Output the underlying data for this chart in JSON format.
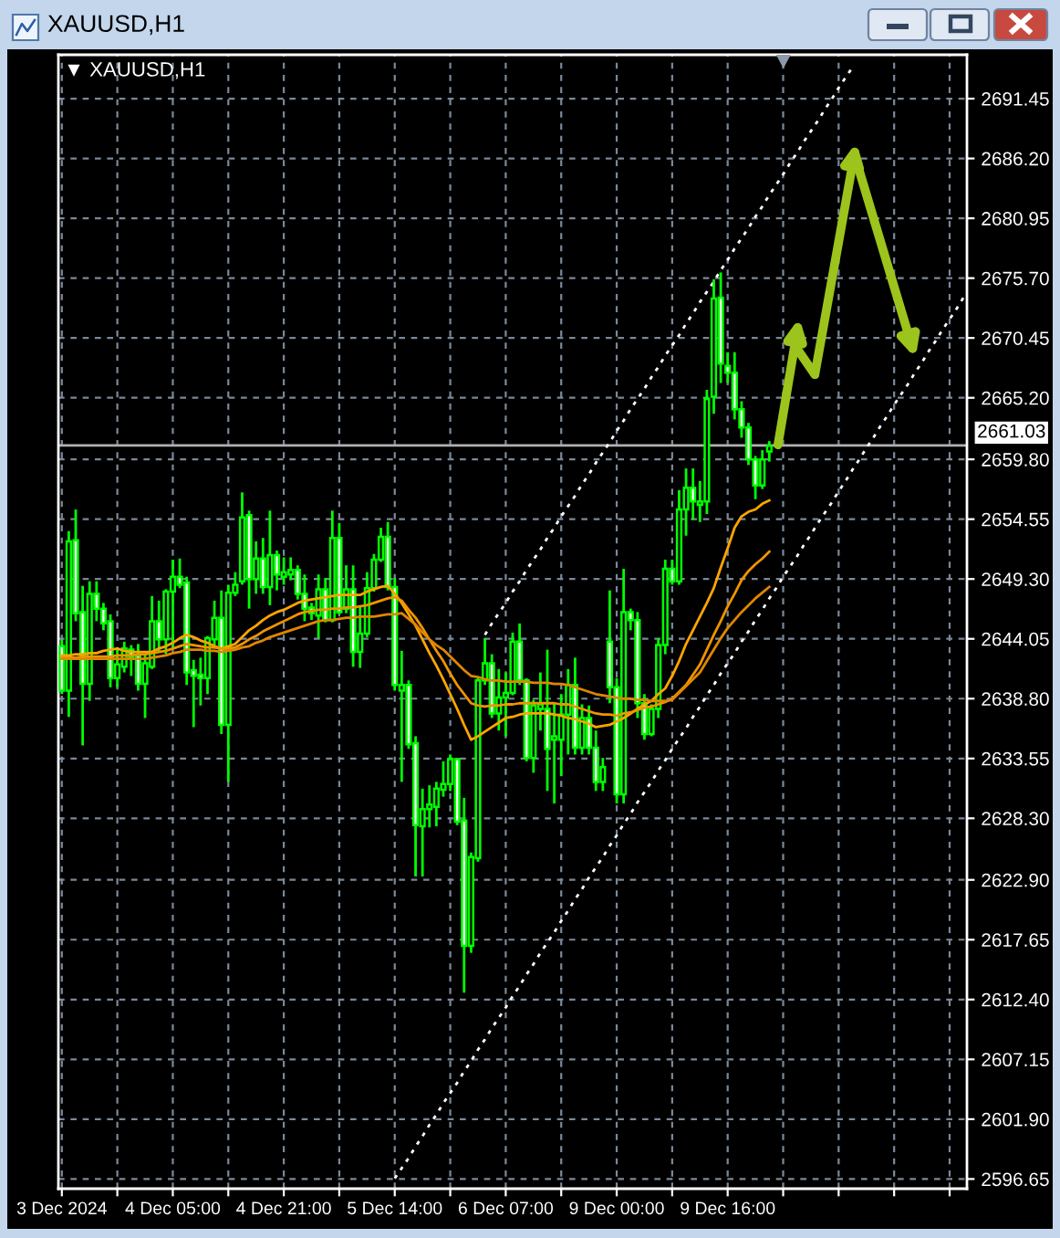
{
  "chart_data": {
    "type": "candlestick",
    "title": "XAUUSD,H1",
    "subtitle": "▼ XAUUSD,H1",
    "categories": [
      "3 Dec 2024",
      null,
      null,
      null,
      null,
      null,
      null,
      null,
      null,
      null,
      null,
      null,
      null,
      null,
      null,
      null,
      "4 Dec 05:00",
      null,
      null,
      null,
      null,
      null,
      null,
      null,
      null,
      null,
      null,
      null,
      null,
      null,
      null,
      null,
      "4 Dec 21:00",
      null,
      null,
      null,
      null,
      null,
      null,
      null,
      null,
      null,
      null,
      null,
      null,
      null,
      null,
      null,
      "5 Dec 14:00",
      null,
      null,
      null,
      null,
      null,
      null,
      null,
      null,
      null,
      null,
      null,
      null,
      null,
      null,
      null,
      "6 Dec 07:00",
      null,
      null,
      null,
      null,
      null,
      null,
      null,
      null,
      null,
      null,
      null,
      null,
      null,
      null,
      null,
      "9 Dec 00:00",
      null,
      null,
      null,
      null,
      null,
      null,
      null,
      null,
      null,
      null,
      null,
      null,
      null,
      null,
      null,
      "9 Dec 16:00",
      null,
      null,
      null,
      null,
      null,
      null,
      null,
      null,
      null,
      null,
      null,
      null,
      null,
      null,
      null,
      null,
      null,
      null,
      null,
      null,
      null,
      null,
      null,
      null,
      null,
      null,
      null,
      null,
      null,
      null,
      null,
      null,
      null,
      null
    ],
    "color": "#00ff00",
    "ohlc": [
      [
        2643.4,
        2644.0,
        2639.2,
        2639.5
      ],
      [
        2639.5,
        2653.5,
        2637.2,
        2652.6
      ],
      [
        2652.7,
        2655.4,
        2645.6,
        2646.3
      ],
      [
        2646.4,
        2648.7,
        2634.7,
        2640.1
      ],
      [
        2640.1,
        2649.1,
        2638.6,
        2648.0
      ],
      [
        2648.0,
        2649.1,
        2645.6,
        2646.7
      ],
      [
        2646.7,
        2647.2,
        2644.8,
        2645.4
      ],
      [
        2645.6,
        2646.2,
        2639.8,
        2640.6
      ],
      [
        2640.6,
        2643.2,
        2639.8,
        2641.8
      ],
      [
        2641.6,
        2643.8,
        2641.1,
        2643.2
      ],
      [
        2643.1,
        2643.5,
        2640.8,
        2642.4
      ],
      [
        2642.6,
        2643.6,
        2639.5,
        2640.1
      ],
      [
        2640.1,
        2642.7,
        2637.1,
        2641.9
      ],
      [
        2641.6,
        2647.8,
        2641.4,
        2645.6
      ],
      [
        2645.6,
        2647.4,
        2642.9,
        2644.0
      ],
      [
        2644.0,
        2648.4,
        2642.7,
        2648.2
      ],
      [
        2648.2,
        2651.0,
        2643.2,
        2649.5
      ],
      [
        2649.5,
        2651.1,
        2648.5,
        2648.8
      ],
      [
        2649.0,
        2649.5,
        2640.0,
        2641.1
      ],
      [
        2641.3,
        2642.2,
        2636.3,
        2640.8
      ],
      [
        2640.9,
        2642.4,
        2638.2,
        2640.6
      ],
      [
        2640.6,
        2644.3,
        2639.2,
        2644.1
      ],
      [
        2644.0,
        2647.4,
        2643.2,
        2645.9
      ],
      [
        2645.9,
        2648.3,
        2635.7,
        2636.5
      ],
      [
        2636.5,
        2648.8,
        2631.5,
        2648.1
      ],
      [
        2648.1,
        2649.9,
        2647.8,
        2648.8
      ],
      [
        2649.1,
        2656.9,
        2648.8,
        2654.7
      ],
      [
        2654.9,
        2655.3,
        2646.7,
        2649.3
      ],
      [
        2649.3,
        2652.6,
        2648.0,
        2651.1
      ],
      [
        2651.1,
        2652.9,
        2648.0,
        2648.6
      ],
      [
        2648.6,
        2655.3,
        2647.0,
        2651.4
      ],
      [
        2651.4,
        2651.8,
        2648.3,
        2649.7
      ],
      [
        2649.5,
        2651.2,
        2648.8,
        2649.9
      ],
      [
        2649.7,
        2651.2,
        2649.2,
        2650.1
      ],
      [
        2650.1,
        2650.5,
        2647.5,
        2648.0
      ],
      [
        2648.0,
        2649.7,
        2645.6,
        2646.7
      ],
      [
        2646.8,
        2647.2,
        2645.7,
        2646.3
      ],
      [
        2646.1,
        2649.7,
        2644.1,
        2648.4
      ],
      [
        2648.4,
        2649.4,
        2645.5,
        2645.7
      ],
      [
        2645.7,
        2655.3,
        2645.5,
        2652.9
      ],
      [
        2652.9,
        2654.2,
        2646.2,
        2646.4
      ],
      [
        2646.7,
        2650.5,
        2646.3,
        2648.4
      ],
      [
        2648.4,
        2650.5,
        2641.6,
        2642.9
      ],
      [
        2642.9,
        2647.0,
        2641.5,
        2644.5
      ],
      [
        2644.5,
        2649.9,
        2644.2,
        2648.5
      ],
      [
        2648.5,
        2651.5,
        2648.2,
        2651.0
      ],
      [
        2651.0,
        2653.8,
        2650.8,
        2653.0
      ],
      [
        2653.0,
        2654.3,
        2648.3,
        2648.6
      ],
      [
        2648.6,
        2649.4,
        2639.5,
        2640.0
      ],
      [
        2639.5,
        2643.0,
        2631.5,
        2640.0
      ],
      [
        2640.0,
        2640.4,
        2634.4,
        2634.8
      ],
      [
        2634.9,
        2635.5,
        2623.2,
        2627.7
      ],
      [
        2627.6,
        2630.9,
        2623.2,
        2629.1
      ],
      [
        2629.1,
        2631.2,
        2627.5,
        2629.5
      ],
      [
        2629.3,
        2631.5,
        2627.6,
        2630.9
      ],
      [
        2630.8,
        2633.3,
        2630.2,
        2631.3
      ],
      [
        2631.3,
        2633.9,
        2630.7,
        2633.5
      ],
      [
        2633.5,
        2633.6,
        2627.7,
        2628.0
      ],
      [
        2628.1,
        2630.1,
        2613.0,
        2617.1
      ],
      [
        2617.1,
        2625.3,
        2616.5,
        2624.9
      ],
      [
        2624.8,
        2640.6,
        2624.5,
        2640.4
      ],
      [
        2640.4,
        2644.1,
        2640.0,
        2641.9
      ],
      [
        2641.9,
        2642.7,
        2637.1,
        2637.5
      ],
      [
        2637.5,
        2641.4,
        2636.0,
        2638.9
      ],
      [
        2638.9,
        2641.1,
        2635.5,
        2639.3
      ],
      [
        2639.3,
        2644.6,
        2639.1,
        2643.8
      ],
      [
        2643.8,
        2645.4,
        2640.0,
        2640.4
      ],
      [
        2640.4,
        2640.6,
        2633.3,
        2633.6
      ],
      [
        2633.6,
        2638.7,
        2632.3,
        2638.2
      ],
      [
        2637.9,
        2641.1,
        2636.0,
        2638.3
      ],
      [
        2637.9,
        2643.1,
        2630.7,
        2634.4
      ],
      [
        2635.2,
        2638.4,
        2629.6,
        2635.5
      ],
      [
        2635.2,
        2639.2,
        2632.0,
        2637.4
      ],
      [
        2637.4,
        2641.4,
        2633.9,
        2640.0
      ],
      [
        2640.0,
        2642.4,
        2633.9,
        2634.5
      ],
      [
        2634.5,
        2638.3,
        2633.9,
        2637.1
      ],
      [
        2637.1,
        2638.2,
        2633.9,
        2634.5
      ],
      [
        2634.5,
        2636.0,
        2630.7,
        2631.5
      ],
      [
        2631.5,
        2633.6,
        2630.7,
        2632.8
      ],
      [
        2643.8,
        2648.3,
        2638.4,
        2639.8
      ],
      [
        2639.8,
        2640.6,
        2629.6,
        2630.4
      ],
      [
        2630.4,
        2650.2,
        2629.6,
        2646.4
      ],
      [
        2646.4,
        2646.7,
        2644.8,
        2645.7
      ],
      [
        2645.7,
        2646.4,
        2637.1,
        2638.4
      ],
      [
        2638.4,
        2639.2,
        2635.2,
        2635.7
      ],
      [
        2635.7,
        2638.3,
        2635.5,
        2637.9
      ],
      [
        2637.9,
        2644.1,
        2637.1,
        2643.5
      ],
      [
        2643.5,
        2651.0,
        2642.7,
        2650.2
      ],
      [
        2650.2,
        2651.0,
        2648.8,
        2649.1
      ],
      [
        2649.1,
        2657.1,
        2648.8,
        2655.4
      ],
      [
        2655.4,
        2659.0,
        2653.1,
        2657.3
      ],
      [
        2657.3,
        2659.0,
        2654.5,
        2656.1
      ],
      [
        2655.8,
        2657.9,
        2654.3,
        2656.1
      ],
      [
        2656.1,
        2665.9,
        2655.0,
        2665.1
      ],
      [
        2665.3,
        2675.6,
        2663.8,
        2673.9
      ],
      [
        2674.0,
        2676.2,
        2666.5,
        2668.2
      ],
      [
        2668.0,
        2669.2,
        2666.5,
        2667.4
      ],
      [
        2667.4,
        2669.2,
        2663.3,
        2664.2
      ],
      [
        2664.2,
        2664.9,
        2661.7,
        2662.6
      ],
      [
        2662.6,
        2663.0,
        2659.3,
        2659.8
      ],
      [
        2659.8,
        2660.1,
        2656.3,
        2657.5
      ],
      [
        2657.5,
        2660.6,
        2657.2,
        2659.8
      ],
      [
        2660.5,
        2661.4,
        2659.6,
        2661.0
      ],
      null,
      null,
      null,
      null,
      null,
      null,
      null,
      null,
      null,
      null,
      null,
      null,
      null,
      null,
      null,
      null,
      null,
      null,
      null,
      null,
      null,
      null,
      null,
      null,
      null,
      null,
      null,
      null
    ],
    "series": [
      {
        "type": "line",
        "color": "#ffa500",
        "values": [
          2642.6,
          2642.6,
          2642.7,
          2642.7,
          2642.8,
          2642.8,
          2643.0,
          2643.1,
          2643.2,
          2643.0,
          2642.9,
          2642.9,
          2642.9,
          2642.9,
          2643.2,
          2643.4,
          2643.7,
          2644.1,
          2644.4,
          2644.2,
          2643.9,
          2643.7,
          2643.4,
          2643.2,
          2643.4,
          2643.6,
          2644.2,
          2644.8,
          2645.2,
          2645.7,
          2646.1,
          2646.4,
          2646.6,
          2646.9,
          2647.2,
          2647.4,
          2647.5,
          2647.6,
          2647.7,
          2647.8,
          2647.9,
          2647.9,
          2647.9,
          2647.9,
          2648.2,
          2648.4,
          2648.6,
          2648.7,
          2648.0,
          2647.2,
          2646.2,
          2645.2,
          2644.0,
          2642.8,
          2641.7,
          2640.5,
          2639.2,
          2637.9,
          2636.5,
          2635.2,
          2635.5,
          2635.9,
          2636.3,
          2636.7,
          2637.1,
          2637.2,
          2637.4,
          2637.5,
          2637.5,
          2637.5,
          2637.5,
          2637.4,
          2637.3,
          2637.1,
          2637.0,
          2636.8,
          2636.6,
          2636.3,
          2636.4,
          2636.5,
          2636.8,
          2637.1,
          2637.5,
          2637.9,
          2638.3,
          2638.6,
          2639.2,
          2639.7,
          2640.8,
          2642.1,
          2643.6,
          2644.8,
          2646.0,
          2647.2,
          2648.5,
          2650.3,
          2652.0,
          2653.8,
          2654.8,
          2655.2,
          2655.4,
          2655.9,
          2656.2,
          null,
          null,
          null,
          null,
          null,
          null,
          null,
          null,
          null,
          null,
          null,
          null,
          null,
          null,
          null,
          null,
          null,
          null,
          null,
          null,
          null,
          null,
          null,
          null,
          null,
          null,
          null,
          null
        ]
      },
      {
        "type": "line",
        "color": "#f09400",
        "values": [
          2642.4,
          2642.4,
          2642.4,
          2642.5,
          2642.5,
          2642.5,
          2642.5,
          2642.5,
          2642.6,
          2642.6,
          2642.6,
          2642.7,
          2642.7,
          2642.8,
          2642.9,
          2643.0,
          2643.2,
          2643.4,
          2643.6,
          2643.5,
          2643.4,
          2643.3,
          2643.3,
          2643.2,
          2643.2,
          2643.3,
          2643.6,
          2644.0,
          2644.3,
          2644.7,
          2645.0,
          2645.3,
          2645.6,
          2645.9,
          2646.2,
          2646.4,
          2646.5,
          2646.6,
          2646.6,
          2646.7,
          2646.7,
          2646.8,
          2646.8,
          2646.9,
          2647.0,
          2647.2,
          2647.4,
          2647.6,
          2647.7,
          2647.4,
          2646.6,
          2645.9,
          2645.0,
          2644.0,
          2643.0,
          2642.1,
          2641.0,
          2640.0,
          2639.2,
          2638.4,
          2638.2,
          2638.1,
          2638.2,
          2638.2,
          2638.3,
          2638.3,
          2638.4,
          2638.4,
          2638.4,
          2638.4,
          2638.4,
          2638.4,
          2638.3,
          2638.3,
          2638.1,
          2637.9,
          2637.7,
          2637.5,
          2637.4,
          2637.4,
          2637.3,
          2637.5,
          2637.6,
          2637.8,
          2638.0,
          2638.1,
          2638.3,
          2638.5,
          2638.8,
          2639.4,
          2640.0,
          2640.9,
          2641.8,
          2643.1,
          2644.4,
          2645.6,
          2646.9,
          2648.0,
          2649.2,
          2650.0,
          2650.6,
          2651.1,
          2651.7,
          null,
          null,
          null,
          null,
          null,
          null,
          null,
          null,
          null,
          null,
          null,
          null,
          null,
          null,
          null,
          null,
          null,
          null,
          null,
          null,
          null,
          null,
          null,
          null,
          null,
          null,
          null,
          null
        ]
      },
      {
        "type": "line",
        "color": "#e08600",
        "values": [
          2642.3,
          2642.3,
          2642.3,
          2642.3,
          2642.3,
          2642.3,
          2642.3,
          2642.3,
          2642.3,
          2642.3,
          2642.3,
          2642.3,
          2642.3,
          2642.4,
          2642.5,
          2642.6,
          2642.8,
          2642.9,
          2643.1,
          2643.1,
          2643.1,
          2643.0,
          2643.0,
          2642.9,
          2643.0,
          2643.1,
          2643.3,
          2643.4,
          2643.7,
          2643.9,
          2644.2,
          2644.4,
          2644.6,
          2644.8,
          2645.0,
          2645.2,
          2645.4,
          2645.6,
          2645.7,
          2645.7,
          2645.8,
          2645.9,
          2645.9,
          2646.0,
          2646.0,
          2646.0,
          2646.1,
          2646.2,
          2646.2,
          2646.3,
          2645.8,
          2645.3,
          2644.6,
          2644.0,
          2643.5,
          2643.1,
          2642.5,
          2641.9,
          2641.3,
          2640.8,
          2640.7,
          2640.5,
          2640.4,
          2640.4,
          2640.3,
          2640.3,
          2640.3,
          2640.3,
          2640.2,
          2640.2,
          2640.2,
          2640.1,
          2640.1,
          2640.0,
          2639.8,
          2639.6,
          2639.4,
          2639.2,
          2639.1,
          2639.0,
          2638.9,
          2638.8,
          2638.8,
          2638.7,
          2638.7,
          2638.6,
          2638.6,
          2638.6,
          2638.7,
          2639.3,
          2639.9,
          2640.5,
          2641.1,
          2642.1,
          2643.1,
          2644.1,
          2645.0,
          2645.7,
          2646.4,
          2647.0,
          2647.6,
          2648.1,
          2648.6,
          null,
          null,
          null,
          null,
          null,
          null,
          null,
          null,
          null,
          null,
          null,
          null,
          null,
          null,
          null,
          null,
          null,
          null,
          null,
          null,
          null,
          null,
          null,
          null,
          null,
          null,
          null,
          null
        ]
      },
      {
        "type": "line",
        "color": "#ffffff",
        "line_style": "dotted",
        "values": [
          null,
          null,
          null,
          null,
          null,
          null,
          null,
          null,
          null,
          null,
          null,
          null,
          null,
          null,
          null,
          null,
          null,
          null,
          null,
          null,
          null,
          null,
          null,
          null,
          null,
          null,
          null,
          null,
          null,
          null,
          null,
          null,
          null,
          null,
          null,
          null,
          null,
          null,
          null,
          null,
          null,
          null,
          null,
          null,
          null,
          null,
          null,
          null,
          null,
          null,
          null,
          null,
          null,
          null,
          null,
          null,
          null,
          null,
          null,
          null,
          null,
          2644.4,
          2645.4,
          2646.3,
          2647.2,
          2648.2,
          2649.1,
          2650.1,
          2651.0,
          2651.9,
          2652.9,
          2653.8,
          2654.8,
          2655.7,
          2656.6,
          2657.6,
          2658.5,
          2659.5,
          2660.4,
          2661.3,
          2662.3,
          2663.2,
          2664.2,
          2665.1,
          2666.0,
          2667.0,
          2667.9,
          2668.9,
          2669.8,
          2670.7,
          2671.7,
          2672.6,
          2673.6,
          2674.5,
          2675.4,
          2676.4,
          2677.3,
          2678.3,
          2679.2,
          2680.1,
          2681.1,
          2682.0,
          2683.0,
          2683.9,
          2684.8,
          2685.8,
          2686.7,
          2687.7,
          2688.6,
          2689.5,
          2690.5,
          2691.4,
          2692.4,
          2693.3,
          2694.2,
          null,
          null,
          null,
          null,
          null,
          null,
          null,
          null,
          null,
          null,
          null,
          null,
          null,
          null,
          null,
          null
        ]
      },
      {
        "type": "line",
        "color": "#ffffff",
        "line_style": "dotted",
        "values": [
          null,
          null,
          null,
          null,
          null,
          null,
          null,
          null,
          null,
          null,
          null,
          null,
          null,
          null,
          null,
          null,
          null,
          null,
          null,
          null,
          null,
          null,
          null,
          null,
          null,
          null,
          null,
          null,
          null,
          null,
          null,
          null,
          null,
          null,
          null,
          null,
          null,
          null,
          null,
          null,
          null,
          null,
          null,
          null,
          null,
          null,
          null,
          null,
          2596.7,
          2597.6,
          2598.5,
          2599.5,
          2600.4,
          2601.4,
          2602.3,
          2603.3,
          2604.2,
          2605.1,
          2606.1,
          2607.0,
          2608.0,
          2608.9,
          2609.9,
          2610.8,
          2611.7,
          2612.7,
          2613.6,
          2614.6,
          2615.5,
          2616.5,
          2617.4,
          2618.3,
          2619.3,
          2620.2,
          2621.2,
          2622.1,
          2623.1,
          2624.0,
          2624.9,
          2625.9,
          2626.8,
          2627.8,
          2628.7,
          2629.7,
          2630.6,
          2631.5,
          2632.5,
          2633.4,
          2634.4,
          2635.3,
          2636.2,
          2637.2,
          2638.1,
          2639.1,
          2640.0,
          2641.0,
          2641.9,
          2642.8,
          2643.8,
          2644.7,
          2645.7,
          2646.6,
          2647.6,
          2648.5,
          2649.5,
          2650.4,
          2651.3,
          2652.3,
          2653.2,
          2654.2,
          2655.1,
          2656.0,
          2657.0,
          2657.9,
          2658.9,
          2659.8,
          2660.8,
          2661.7,
          2662.7,
          2663.6,
          2664.6,
          2665.5,
          2666.4,
          2667.4,
          2668.3,
          2669.3,
          2670.2,
          2671.2,
          2672.1,
          2673.0,
          2674.0
        ]
      }
    ],
    "ref_lines": [
      {
        "axis": "y",
        "value": 2661.03,
        "label": "2661.03",
        "color": "#b0b0b0",
        "line_style": "solid"
      }
    ],
    "ylim": [
      2595.8,
      2695.3
    ],
    "yticks": [
      2691.45,
      {
        "value": 2686.2,
        "label": "2686.20"
      },
      2680.95,
      {
        "value": 2675.7,
        "label": "2675.70"
      },
      2670.45,
      {
        "value": 2665.2,
        "label": "2665.20"
      },
      {
        "value": 2659.8,
        "label": "2659.80"
      },
      2654.55,
      {
        "value": 2649.3,
        "label": "2649.30"
      },
      2644.05,
      {
        "value": 2638.8,
        "label": "2638.80"
      },
      2633.55,
      {
        "value": 2628.3,
        "label": "2628.30"
      },
      {
        "value": 2622.9,
        "label": "2622.90"
      },
      2617.65,
      {
        "value": 2612.4,
        "label": "2612.40"
      },
      2607.15,
      {
        "value": 2601.9,
        "label": "2601.90"
      },
      2596.65
    ],
    "grid": true
  }
}
